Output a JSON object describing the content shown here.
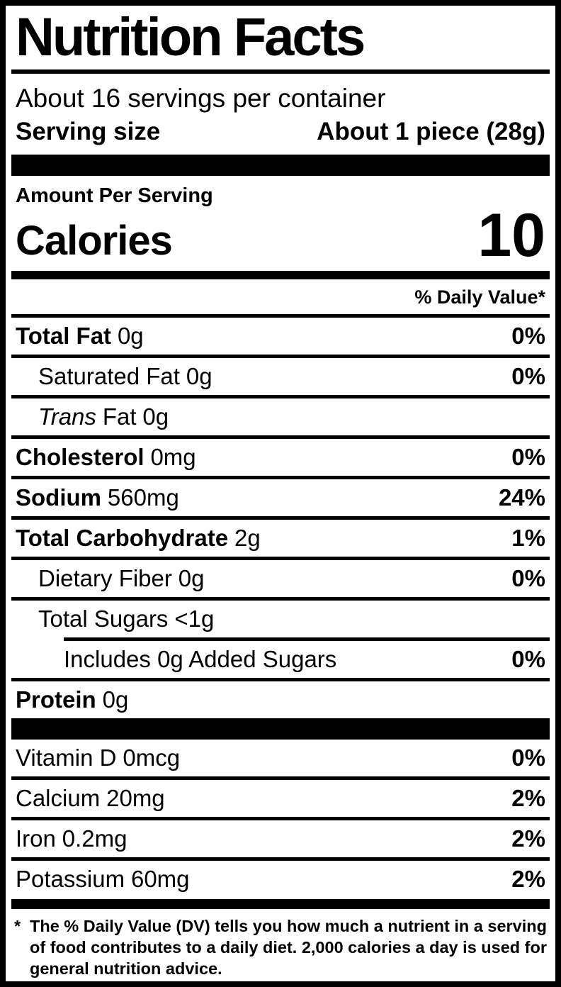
{
  "label": {
    "title": "Nutrition Facts",
    "servings_per_container": "About 16 servings per container",
    "serving_size_label": "Serving size",
    "serving_size_value": "About 1 piece (28g)",
    "amount_per_serving": "Amount Per Serving",
    "calories_label": "Calories",
    "calories_value": "10",
    "daily_value_header": "% Daily Value*",
    "nutrients": [
      {
        "name": "Total Fat",
        "amount": "0g",
        "dv": "0%"
      },
      {
        "name": "Saturated Fat",
        "amount": "0g",
        "dv": "0%"
      },
      {
        "name_italic": "Trans",
        "name": "Fat",
        "amount": "0g",
        "dv": ""
      },
      {
        "name": "Cholesterol",
        "amount": "0mg",
        "dv": "0%"
      },
      {
        "name": "Sodium",
        "amount": "560mg",
        "dv": "24%"
      },
      {
        "name": "Total Carbohydrate",
        "amount": "2g",
        "dv": "1%"
      },
      {
        "name": "Dietary Fiber",
        "amount": "0g",
        "dv": "0%"
      },
      {
        "name": "Total Sugars",
        "amount": "<1g",
        "dv": ""
      },
      {
        "name": "Includes 0g Added Sugars",
        "amount": "",
        "dv": "0%"
      },
      {
        "name": "Protein",
        "amount": "0g",
        "dv": ""
      }
    ],
    "vitamins": [
      {
        "name": "Vitamin D",
        "amount": "0mcg",
        "dv": "0%"
      },
      {
        "name": "Calcium",
        "amount": "20mg",
        "dv": "2%"
      },
      {
        "name": "Iron",
        "amount": "0.2mg",
        "dv": "2%"
      },
      {
        "name": "Potassium",
        "amount": "60mg",
        "dv": "2%"
      }
    ],
    "footnote_marker": "*",
    "footnote": "The % Daily Value (DV) tells you how much a nutrient in a serving of food contributes to a daily diet. 2,000 calories a day is used for general nutrition advice.",
    "colors": {
      "ink": "#000000",
      "paper": "#ffffff"
    }
  }
}
